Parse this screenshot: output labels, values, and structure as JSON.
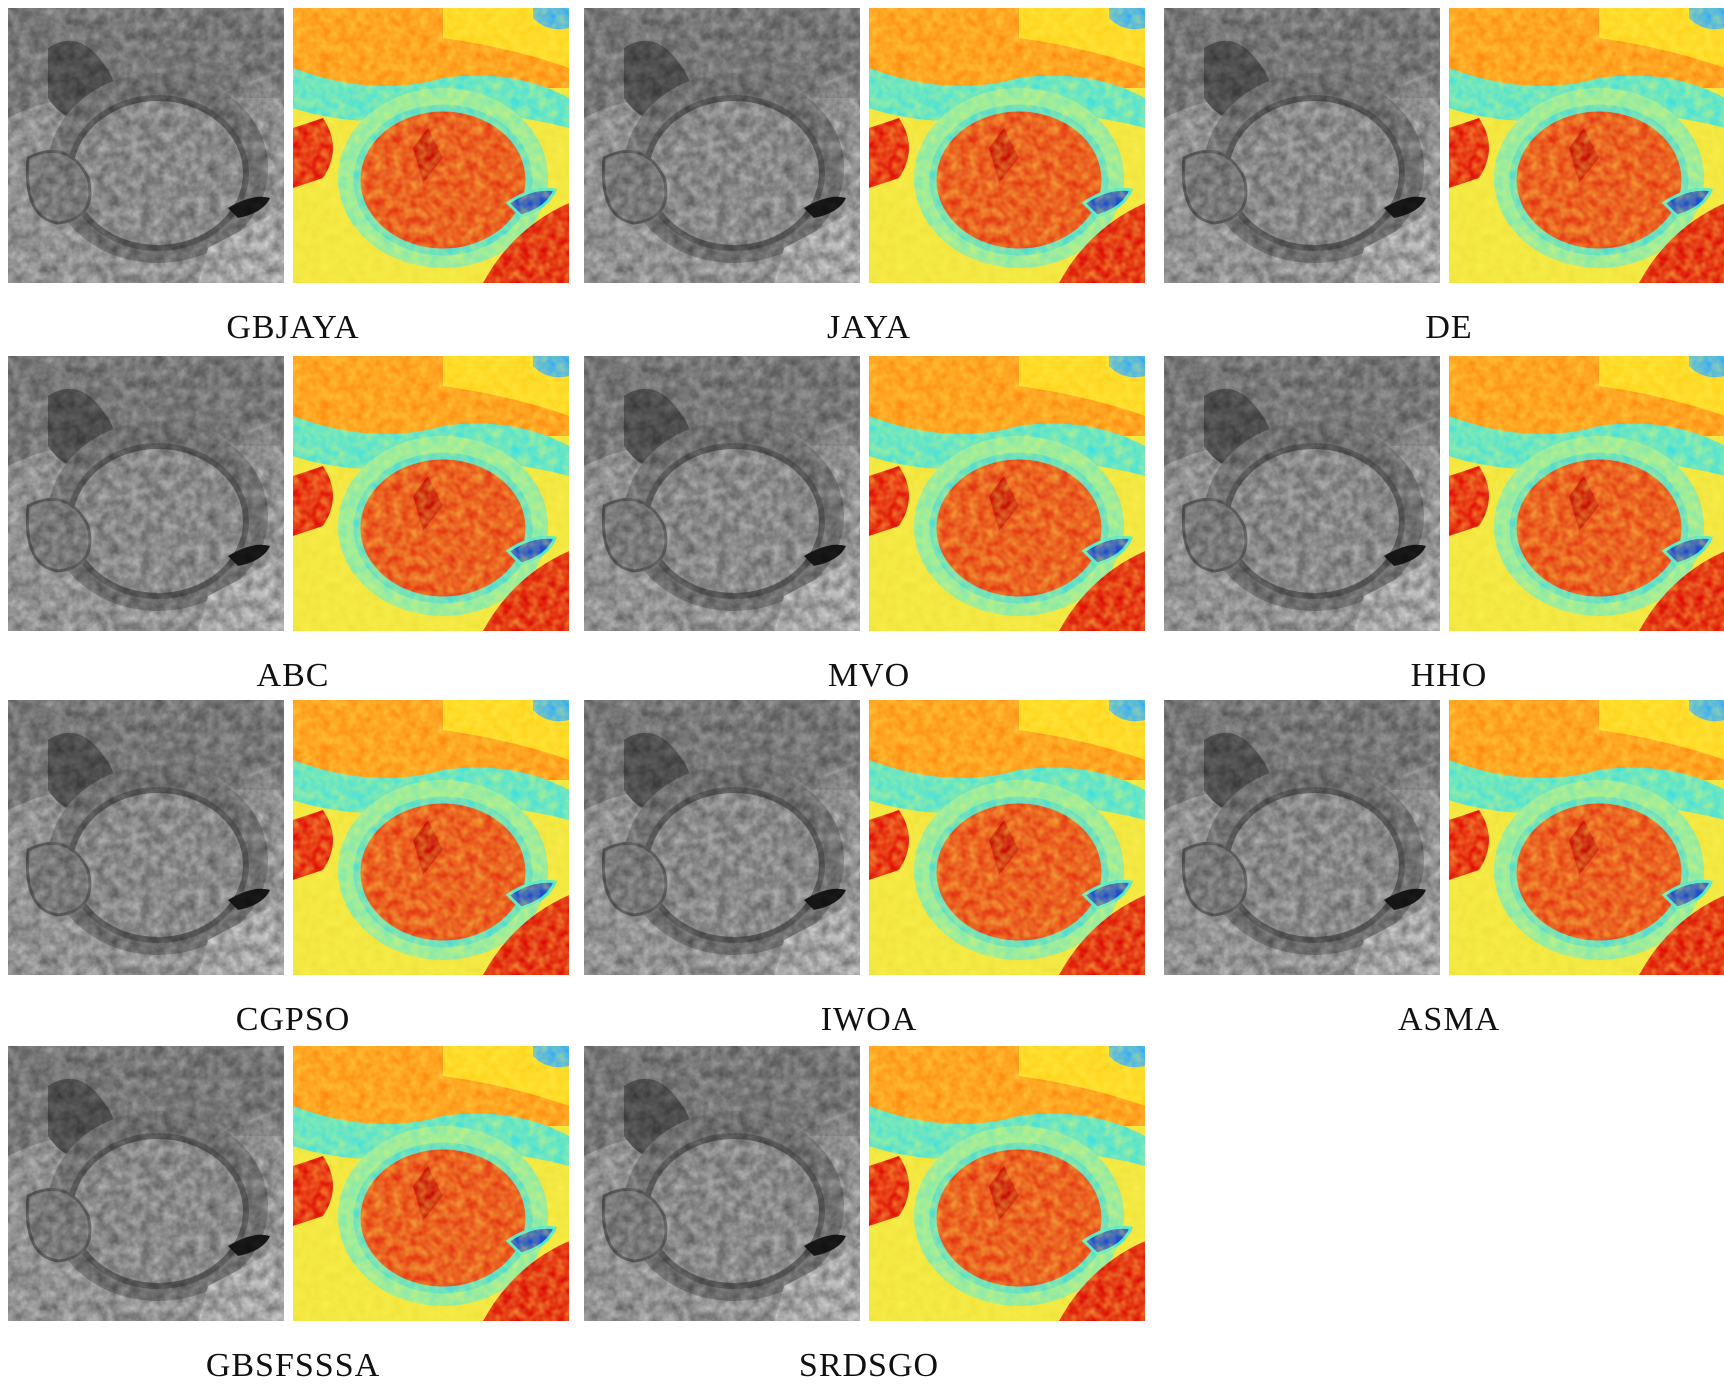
{
  "labels": [
    "GBJAYA",
    "JAYA",
    "DE",
    "ABC",
    "MVO",
    "HHO",
    "CGPSO",
    "IWOA",
    "ASMA",
    "GBSFSSSA",
    "SRDSGO"
  ],
  "panel_types": [
    "grayscale-segmented-image",
    "pseudocolor-segmented-image"
  ],
  "colors": {
    "background": "#ffffff",
    "colormap": [
      "#0b2fd6",
      "#1e9bff",
      "#33e6e6",
      "#b8f060",
      "#f5f02a",
      "#ffb414",
      "#ff6a00",
      "#e00000"
    ]
  }
}
